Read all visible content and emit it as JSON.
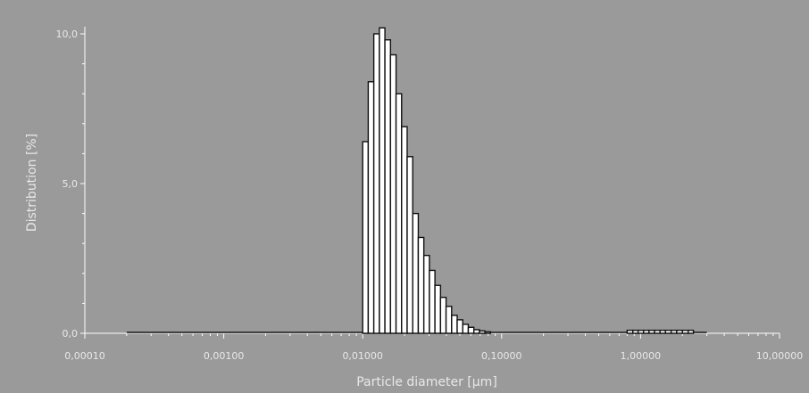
{
  "chart_data": {
    "type": "bar",
    "xlabel": "Particle diameter [µm]",
    "ylabel": "Distribution [%]",
    "x_scale": "log",
    "xlim": [
      0.0001,
      10
    ],
    "ylim": [
      0,
      10
    ],
    "x_tick_values": [
      0.0001,
      0.001,
      0.01,
      0.1,
      1,
      10
    ],
    "x_tick_labels": [
      "0,00010",
      "0,00100",
      "0,01000",
      "0,10000",
      "1,00000",
      "10,00000"
    ],
    "y_tick_values": [
      0,
      5,
      10
    ],
    "y_tick_labels": [
      "0,0",
      "5,0",
      "10,0"
    ],
    "grid": false,
    "baseline_range": [
      0.0002,
      3.0
    ],
    "bins": [
      {
        "x0": 0.01,
        "x1": 0.01096,
        "value": 6.4
      },
      {
        "x0": 0.01096,
        "x1": 0.01202,
        "value": 8.4
      },
      {
        "x0": 0.01202,
        "x1": 0.01318,
        "value": 10.0
      },
      {
        "x0": 0.01318,
        "x1": 0.01445,
        "value": 10.2
      },
      {
        "x0": 0.01445,
        "x1": 0.01585,
        "value": 9.8
      },
      {
        "x0": 0.01585,
        "x1": 0.01738,
        "value": 9.3
      },
      {
        "x0": 0.01738,
        "x1": 0.01905,
        "value": 8.0
      },
      {
        "x0": 0.01905,
        "x1": 0.02089,
        "value": 6.9
      },
      {
        "x0": 0.02089,
        "x1": 0.02291,
        "value": 5.9
      },
      {
        "x0": 0.02291,
        "x1": 0.02512,
        "value": 4.0
      },
      {
        "x0": 0.02512,
        "x1": 0.02754,
        "value": 3.2
      },
      {
        "x0": 0.02754,
        "x1": 0.0302,
        "value": 2.6
      },
      {
        "x0": 0.0302,
        "x1": 0.03311,
        "value": 2.1
      },
      {
        "x0": 0.03311,
        "x1": 0.03631,
        "value": 1.6
      },
      {
        "x0": 0.03631,
        "x1": 0.03981,
        "value": 1.2
      },
      {
        "x0": 0.03981,
        "x1": 0.04365,
        "value": 0.9
      },
      {
        "x0": 0.04365,
        "x1": 0.04786,
        "value": 0.6
      },
      {
        "x0": 0.04786,
        "x1": 0.05248,
        "value": 0.45
      },
      {
        "x0": 0.05248,
        "x1": 0.05754,
        "value": 0.3
      },
      {
        "x0": 0.05754,
        "x1": 0.0631,
        "value": 0.2
      },
      {
        "x0": 0.0631,
        "x1": 0.06918,
        "value": 0.12
      },
      {
        "x0": 0.06918,
        "x1": 0.07586,
        "value": 0.08
      },
      {
        "x0": 0.07586,
        "x1": 0.08318,
        "value": 0.05
      },
      {
        "x0": 0.8,
        "x1": 0.88,
        "value": 0.1
      },
      {
        "x0": 0.88,
        "x1": 0.96,
        "value": 0.1
      },
      {
        "x0": 0.96,
        "x1": 1.05,
        "value": 0.1
      },
      {
        "x0": 1.05,
        "x1": 1.15,
        "value": 0.1
      },
      {
        "x0": 1.15,
        "x1": 1.26,
        "value": 0.1
      },
      {
        "x0": 1.26,
        "x1": 1.38,
        "value": 0.1
      },
      {
        "x0": 1.38,
        "x1": 1.51,
        "value": 0.1
      },
      {
        "x0": 1.51,
        "x1": 1.66,
        "value": 0.1
      },
      {
        "x0": 1.66,
        "x1": 1.82,
        "value": 0.1
      },
      {
        "x0": 1.82,
        "x1": 2.0,
        "value": 0.1
      },
      {
        "x0": 2.0,
        "x1": 2.2,
        "value": 0.1
      },
      {
        "x0": 2.2,
        "x1": 2.4,
        "value": 0.1
      }
    ]
  }
}
